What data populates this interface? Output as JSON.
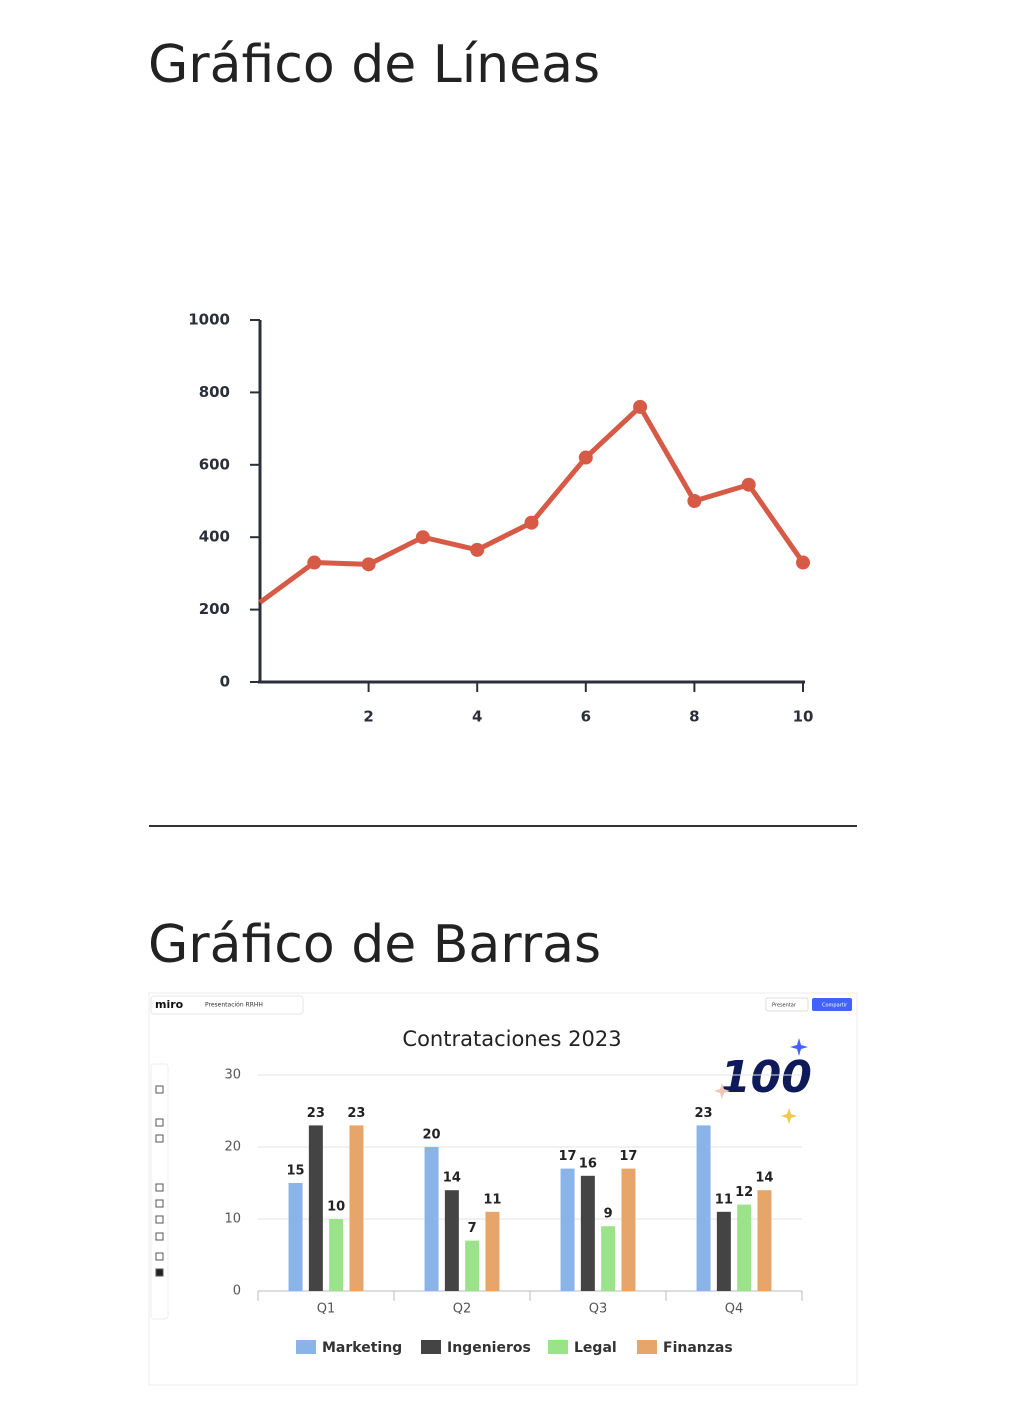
{
  "sections": [
    {
      "heading": "Gráfico de Líneas"
    },
    {
      "heading": "Gráfico de Barras"
    }
  ],
  "app": {
    "logo": "miro",
    "board": "Presentación RRHH",
    "present": "Presentar",
    "share": "Compartir",
    "sticker": "100"
  },
  "chart_data": [
    {
      "type": "line",
      "x": [
        0,
        1,
        2,
        3,
        4,
        5,
        6,
        7,
        8,
        9,
        10
      ],
      "values": [
        220,
        330,
        325,
        400,
        365,
        440,
        620,
        760,
        500,
        545,
        330
      ],
      "color": "#d65a45",
      "xlim": [
        0,
        10
      ],
      "xticks": [
        2,
        4,
        6,
        8,
        10
      ],
      "ylim": [
        0,
        1000
      ],
      "yticks": [
        0,
        200,
        400,
        600,
        800,
        1000
      ],
      "grid": false
    },
    {
      "type": "bar",
      "title": "Contrataciones 2023",
      "categories": [
        "Q1",
        "Q2",
        "Q3",
        "Q4"
      ],
      "series": [
        {
          "name": "Marketing",
          "color": "#8ab4e8",
          "values": [
            15,
            20,
            17,
            23
          ]
        },
        {
          "name": "Ingenieros",
          "color": "#444444",
          "values": [
            23,
            14,
            16,
            11
          ]
        },
        {
          "name": "Legal",
          "color": "#9be38a",
          "values": [
            10,
            7,
            9,
            12
          ]
        },
        {
          "name": "Finanzas",
          "color": "#e8a56a",
          "values": [
            23,
            11,
            17,
            14
          ]
        }
      ],
      "ylim": [
        0,
        30
      ],
      "yticks": [
        0,
        10,
        20,
        30
      ],
      "grid": true,
      "legend": "bottom"
    }
  ]
}
